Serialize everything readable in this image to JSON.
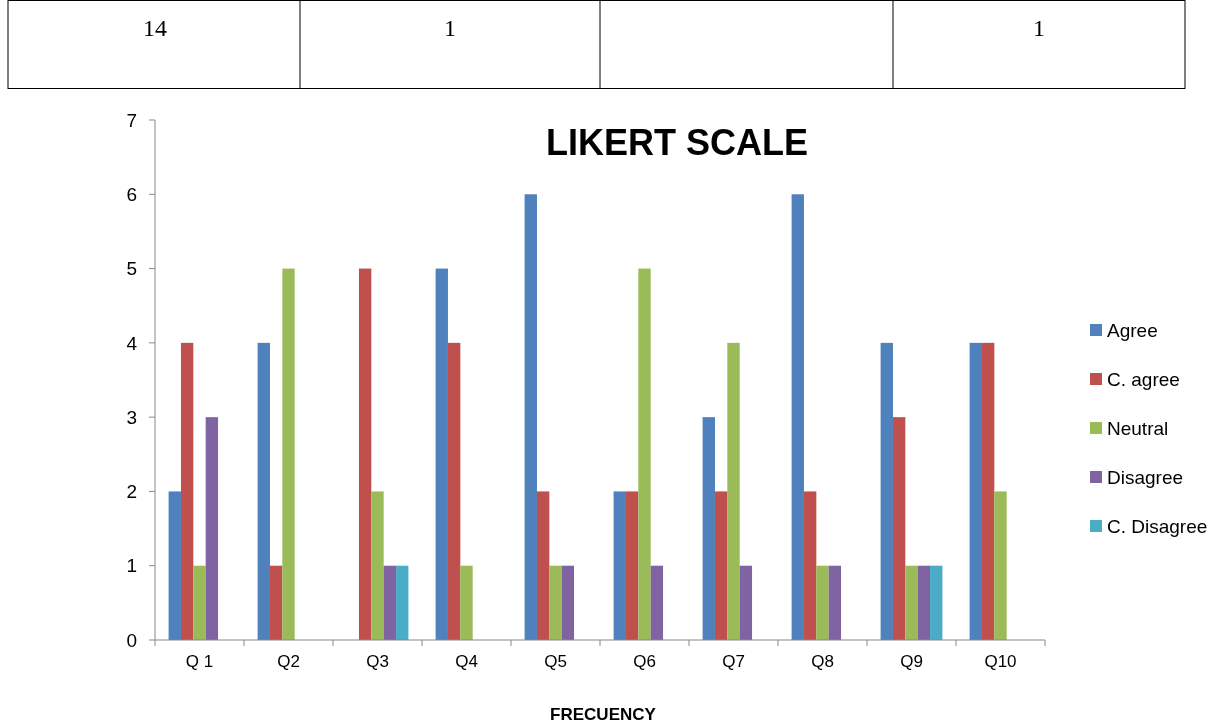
{
  "chart_data": {
    "type": "bar",
    "title": "LIKERT SCALE",
    "xlabel": "FRECUENCY",
    "annotations": [
      "14",
      "1",
      "1"
    ],
    "categories": [
      "Q 1",
      "Q2",
      "Q3",
      "Q4",
      "Q5",
      "Q6",
      "Q7",
      "Q8",
      "Q9",
      "Q10"
    ],
    "series": [
      {
        "name": "Agree",
        "color": "#4f81bd",
        "values": [
          2,
          4,
          0,
          5,
          6,
          2,
          3,
          6,
          4,
          4
        ]
      },
      {
        "name": "C. agree",
        "color": "#c0504d",
        "values": [
          4,
          1,
          5,
          4,
          2,
          2,
          2,
          2,
          3,
          4
        ]
      },
      {
        "name": "Neutral",
        "color": "#9bbb59",
        "values": [
          1,
          5,
          2,
          1,
          1,
          5,
          4,
          1,
          1,
          2
        ]
      },
      {
        "name": "Disagree",
        "color": "#8064a2",
        "values": [
          3,
          0,
          1,
          0,
          1,
          1,
          1,
          1,
          1,
          0
        ]
      },
      {
        "name": "C. Disagree",
        "color": "#4bacc6",
        "values": [
          0,
          0,
          1,
          0,
          0,
          0,
          0,
          0,
          1,
          0
        ]
      }
    ],
    "ylim": [
      0,
      7
    ],
    "yticks": [
      0,
      1,
      2,
      3,
      4,
      5,
      6,
      7
    ],
    "grid": false,
    "legend": "right"
  }
}
